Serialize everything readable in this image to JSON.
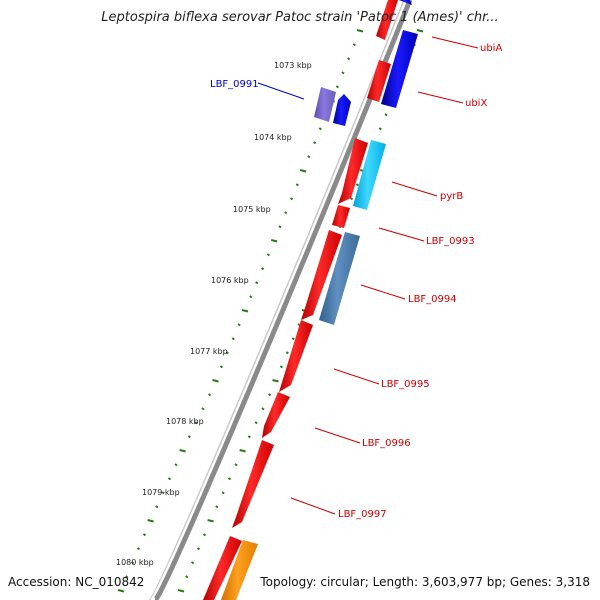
{
  "title": "Leptospira biflexa serovar Patoc strain 'Patoc 1 (Ames)' chr...",
  "footer": {
    "accession": "Accession: NC_010842",
    "summary": "Topology: circular; Length: 3,603,977 bp; Genes: 3,318"
  },
  "colors": {
    "backbone": "#888888",
    "tick": "#2a7a1a",
    "forward_gene": "#ff0000",
    "reverse_gene": "#0000ff",
    "label_red": "#cc0000",
    "label_blue": "#0000cc"
  },
  "ticks": [
    {
      "label": "1073 kbp"
    },
    {
      "label": "1074 kbp"
    },
    {
      "label": "1075 kbp"
    },
    {
      "label": "1076 kbp"
    },
    {
      "label": "1077 kbp"
    },
    {
      "label": "1078 kbp"
    },
    {
      "label": "1079 kbp"
    },
    {
      "label": "1080 kbp"
    }
  ],
  "gene_labels": [
    {
      "name": "ubiA",
      "color": "#cc0000"
    },
    {
      "name": "ubiX",
      "color": "#cc0000"
    },
    {
      "name": "LBF_0991",
      "color": "#0000cc"
    },
    {
      "name": "pyrB",
      "color": "#cc0000"
    },
    {
      "name": "LBF_0993",
      "color": "#cc0000"
    },
    {
      "name": "LBF_0994",
      "color": "#cc0000"
    },
    {
      "name": "LBF_0995",
      "color": "#cc0000"
    },
    {
      "name": "LBF_0996",
      "color": "#cc0000"
    },
    {
      "name": "LBF_0997",
      "color": "#cc0000"
    }
  ]
}
